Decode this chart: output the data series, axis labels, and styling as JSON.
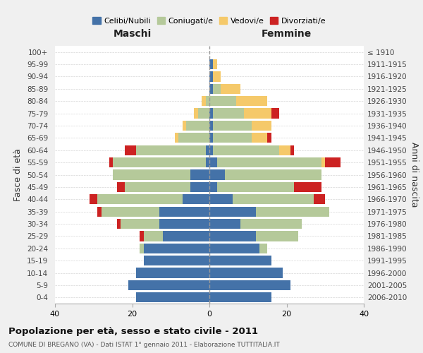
{
  "age_groups": [
    "0-4",
    "5-9",
    "10-14",
    "15-19",
    "20-24",
    "25-29",
    "30-34",
    "35-39",
    "40-44",
    "45-49",
    "50-54",
    "55-59",
    "60-64",
    "65-69",
    "70-74",
    "75-79",
    "80-84",
    "85-89",
    "90-94",
    "95-99",
    "100+"
  ],
  "birth_years": [
    "2006-2010",
    "2001-2005",
    "1996-2000",
    "1991-1995",
    "1986-1990",
    "1981-1985",
    "1976-1980",
    "1971-1975",
    "1966-1970",
    "1961-1965",
    "1956-1960",
    "1951-1955",
    "1946-1950",
    "1941-1945",
    "1936-1940",
    "1931-1935",
    "1926-1930",
    "1921-1925",
    "1916-1920",
    "1911-1915",
    "≤ 1910"
  ],
  "maschi": {
    "celibe": [
      19,
      21,
      19,
      17,
      17,
      12,
      13,
      13,
      7,
      5,
      5,
      1,
      1,
      0,
      0,
      0,
      0,
      0,
      0,
      0,
      0
    ],
    "coniugato": [
      0,
      0,
      0,
      0,
      1,
      5,
      10,
      15,
      22,
      17,
      20,
      24,
      18,
      8,
      6,
      3,
      1,
      0,
      0,
      0,
      0
    ],
    "vedovo": [
      0,
      0,
      0,
      0,
      0,
      0,
      0,
      0,
      0,
      0,
      0,
      0,
      0,
      1,
      1,
      1,
      1,
      0,
      0,
      0,
      0
    ],
    "divorziato": [
      0,
      0,
      0,
      0,
      0,
      1,
      1,
      1,
      2,
      2,
      0,
      1,
      3,
      0,
      0,
      0,
      0,
      0,
      0,
      0,
      0
    ]
  },
  "femmine": {
    "nubile": [
      16,
      21,
      19,
      16,
      13,
      12,
      8,
      12,
      6,
      2,
      4,
      2,
      1,
      1,
      1,
      1,
      0,
      1,
      1,
      1,
      0
    ],
    "coniugata": [
      0,
      0,
      0,
      0,
      2,
      11,
      16,
      19,
      21,
      20,
      25,
      27,
      17,
      10,
      10,
      8,
      7,
      2,
      0,
      0,
      0
    ],
    "vedova": [
      0,
      0,
      0,
      0,
      0,
      0,
      0,
      0,
      0,
      0,
      0,
      1,
      3,
      4,
      5,
      7,
      8,
      5,
      2,
      1,
      0
    ],
    "divorziata": [
      0,
      0,
      0,
      0,
      0,
      0,
      0,
      0,
      3,
      7,
      0,
      4,
      1,
      1,
      0,
      2,
      0,
      0,
      0,
      0,
      0
    ]
  },
  "colors": {
    "celibe": "#4472a8",
    "coniugato": "#b5c99a",
    "vedovo": "#f5c96a",
    "divorziato": "#cc2222"
  },
  "xlim": 40,
  "title": "Popolazione per età, sesso e stato civile - 2011",
  "subtitle": "COMUNE DI BREGANO (VA) - Dati ISTAT 1° gennaio 2011 - Elaborazione TUTTITALIA.IT",
  "ylabel_left": "Fasce di età",
  "ylabel_right": "Anni di nascita",
  "xlabel_maschi": "Maschi",
  "xlabel_femmine": "Femmine",
  "legend_labels": [
    "Celibi/Nubili",
    "Coniugati/e",
    "Vedovi/e",
    "Divorziati/e"
  ],
  "background_color": "#f0f0f0",
  "plot_bg_color": "#ffffff"
}
